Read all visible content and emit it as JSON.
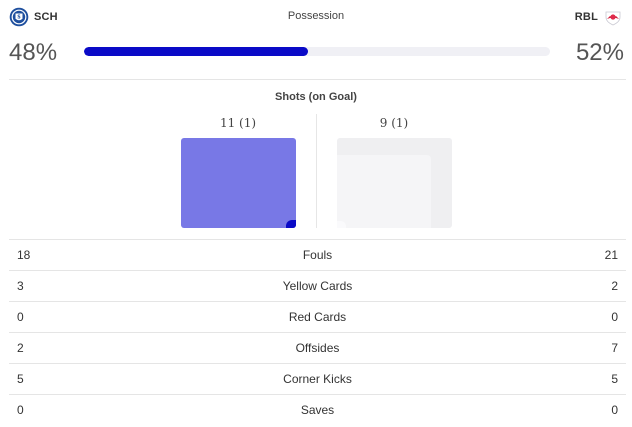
{
  "header": {
    "home_abbr": "SCH",
    "away_abbr": "RBL",
    "title": "Possession",
    "home_crest_icon": "schalke-crest-icon",
    "away_crest_icon": "rb-leipzig-crest-icon"
  },
  "possession": {
    "home": "48%",
    "away": "52%",
    "home_fraction": 0.48,
    "bar_color": "#0a0ac7",
    "track_color": "#f0f0f5"
  },
  "shots": {
    "title": "Shots (on Goal)",
    "home": "11 (1)",
    "away": "9 (1)",
    "home_color": "#7878e6",
    "home_on_goal_color": "#0a0ac7",
    "away_color": "#efeff1"
  },
  "stats": [
    {
      "label": "Fouls",
      "home": "18",
      "away": "21"
    },
    {
      "label": "Yellow Cards",
      "home": "3",
      "away": "2"
    },
    {
      "label": "Red Cards",
      "home": "0",
      "away": "0"
    },
    {
      "label": "Offsides",
      "home": "2",
      "away": "7"
    },
    {
      "label": "Corner Kicks",
      "home": "5",
      "away": "5"
    },
    {
      "label": "Saves",
      "home": "0",
      "away": "0"
    }
  ]
}
